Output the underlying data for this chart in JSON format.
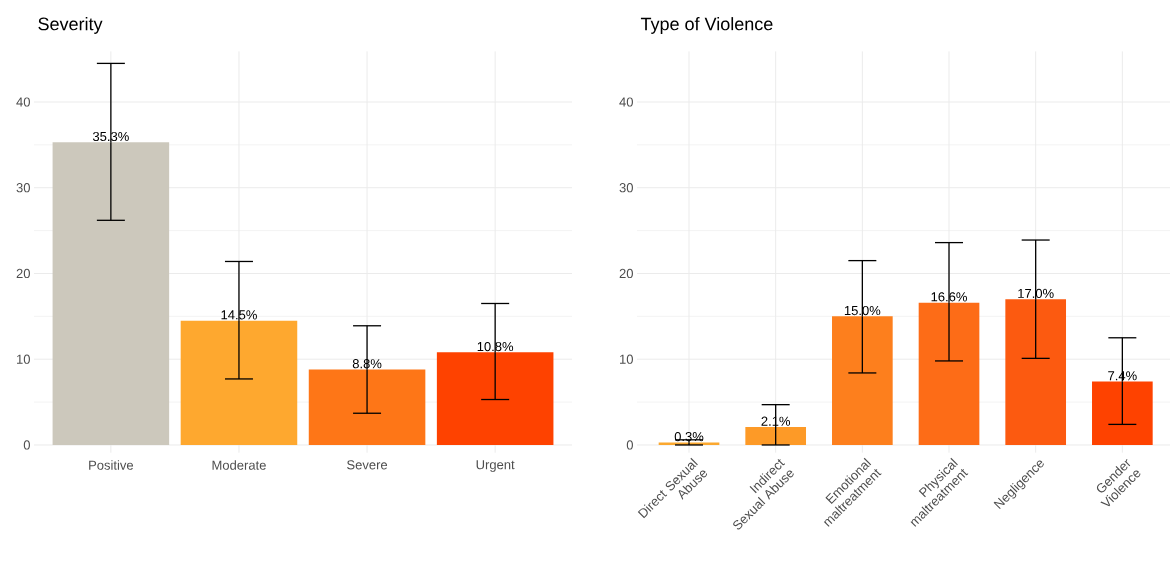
{
  "chart_data": [
    {
      "type": "bar",
      "title": "Severity",
      "categories": [
        "Positive",
        "Moderate",
        "Severe",
        "Urgent"
      ],
      "values": [
        35.3,
        14.5,
        8.8,
        10.8
      ],
      "colors": [
        "#ccc8bc",
        "#fea82f",
        "#fe7617",
        "#fe4200"
      ],
      "errors": [
        [
          26.2,
          44.5
        ],
        [
          7.7,
          21.4
        ],
        [
          3.7,
          13.9
        ],
        [
          5.3,
          16.5
        ]
      ],
      "value_labels": [
        "35.3%",
        "14.5%",
        "8.8%",
        "10.8%"
      ],
      "ylim": [
        -0.9,
        45.9
      ],
      "yticks": [
        0,
        10,
        20,
        30,
        40
      ],
      "grid": true
    },
    {
      "type": "bar",
      "title": "Type of Violence",
      "categories": [
        "Direct Sexual Abuse",
        "Indirect Sexual Abuse",
        "Emotional maltreatment",
        "Physical maltreatment",
        "Negligence",
        "Gender Violence"
      ],
      "values": [
        0.3,
        2.1,
        15.0,
        16.6,
        17.0,
        7.4
      ],
      "colors": [
        "#fba82f",
        "#fd9a27",
        "#fd7f1d",
        "#fd6c17",
        "#fc5a10",
        "#fe4200"
      ],
      "errors": [
        [
          0,
          0.6
        ],
        [
          0,
          4.7
        ],
        [
          8.4,
          21.5
        ],
        [
          9.8,
          23.6
        ],
        [
          10.1,
          23.9
        ],
        [
          2.4,
          12.5
        ]
      ],
      "value_labels": [
        "0.3%",
        "2.1%",
        "15.0%",
        "16.6%",
        "17.0%",
        "7.4%"
      ],
      "ylim": [
        -0.9,
        45.9
      ],
      "yticks": [
        0,
        10,
        20,
        30,
        40
      ],
      "grid": true
    }
  ]
}
